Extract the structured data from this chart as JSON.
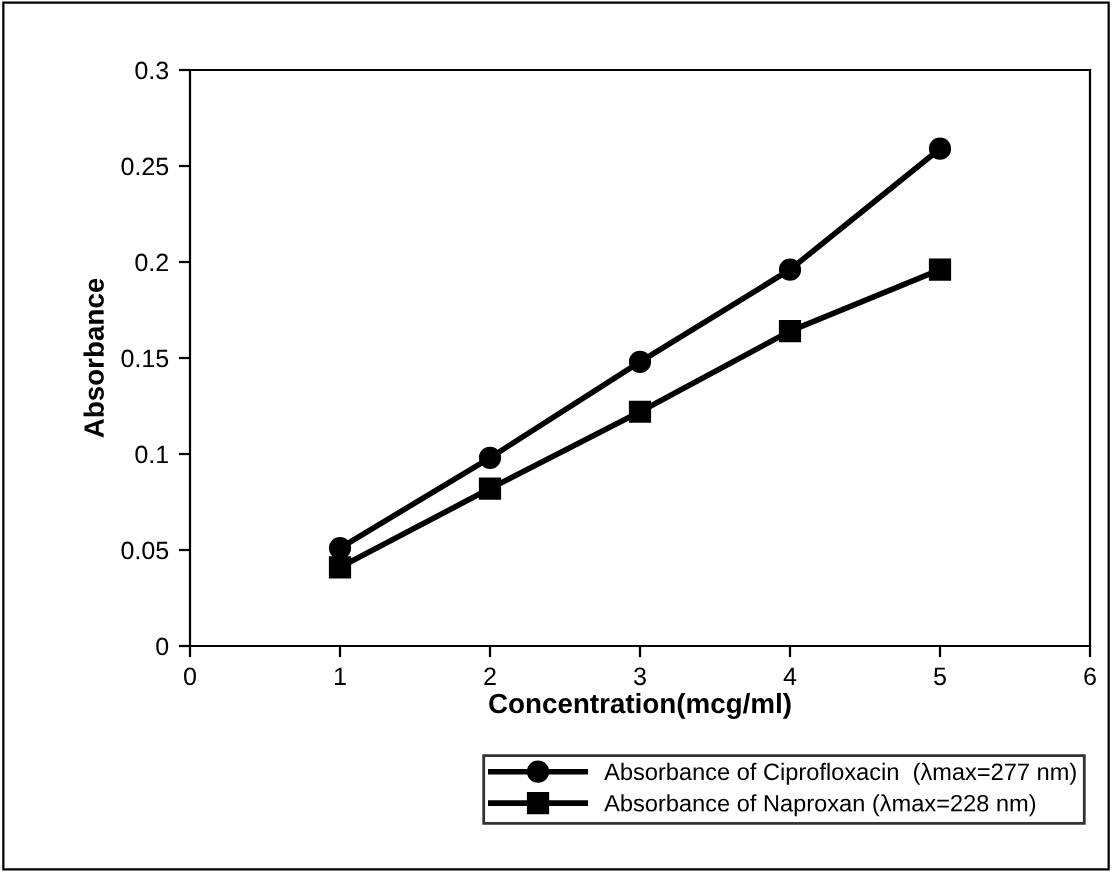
{
  "chart_data": {
    "type": "line",
    "xlabel": "Concentration(mcg/ml)",
    "ylabel": "Absorbance",
    "x": [
      1,
      2,
      3,
      4,
      5
    ],
    "series": [
      {
        "name": "Absorbance of Ciprofloxacin  (λmax=277 nm)",
        "color": "#000000",
        "marker": "circle",
        "values": [
          0.051,
          0.098,
          0.148,
          0.196,
          0.259
        ]
      },
      {
        "name": "Absorbance of Naproxan (λmax=228 nm)",
        "color": "#000000",
        "marker": "square",
        "values": [
          0.041,
          0.082,
          0.122,
          0.164,
          0.196
        ]
      }
    ],
    "xlim": [
      0,
      6
    ],
    "xticks": [
      0,
      1,
      2,
      3,
      4,
      5,
      6
    ],
    "ylim": [
      0,
      0.3
    ],
    "yticks": [
      0,
      0.05,
      0.1,
      0.15,
      0.2,
      0.25,
      0.3
    ],
    "grid": false,
    "legend": "bottom",
    "line_style": "solid"
  }
}
